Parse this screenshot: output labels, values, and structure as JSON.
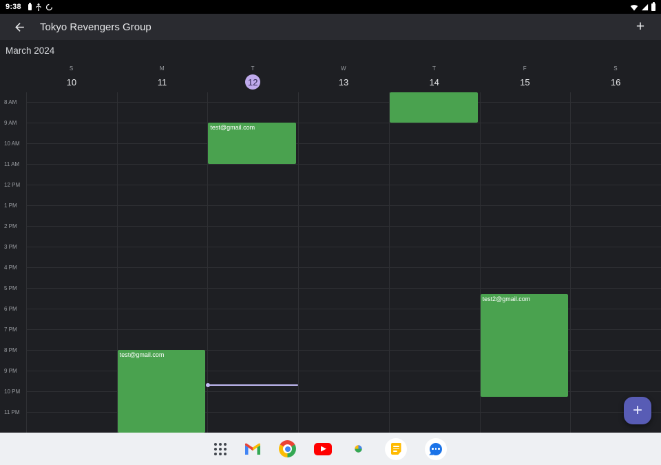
{
  "status_bar": {
    "time": "9:38",
    "left_icons": [
      "battery-notification",
      "usb",
      "data-saver"
    ],
    "right_icons": [
      "wifi",
      "cell-signal",
      "battery"
    ]
  },
  "app_bar": {
    "title": "Tokyo Revengers Group",
    "add_label": "+"
  },
  "calendar": {
    "month_label": "March 2024",
    "day_letters": [
      "S",
      "M",
      "T",
      "W",
      "T",
      "F",
      "S"
    ],
    "day_numbers": [
      "10",
      "11",
      "12",
      "13",
      "14",
      "15",
      "16"
    ],
    "selected_day_index": 2,
    "hour_labels": [
      "8 AM",
      "9 AM",
      "10 AM",
      "11 AM",
      "12 PM",
      "1 PM",
      "2 PM",
      "3 PM",
      "4 PM",
      "5 PM",
      "6 PM",
      "7 PM",
      "8 PM",
      "9 PM",
      "10 PM",
      "11 PM"
    ],
    "events": [
      {
        "title": "test@gmail.com",
        "day_index": 1,
        "start_hour": 20.0,
        "end_hour": 24.0
      },
      {
        "title": "test@gmail.com",
        "day_index": 2,
        "start_hour": 9.0,
        "end_hour": 11.0
      },
      {
        "title": "",
        "day_index": 4,
        "start_hour": 7.55,
        "end_hour": 9.0
      },
      {
        "title": "test2@gmail.com",
        "day_index": 5,
        "start_hour": 17.3,
        "end_hour": 22.25
      }
    ],
    "now_indicator": {
      "day_index": 2,
      "hour": 21.65
    }
  },
  "fab": {
    "label": "+"
  },
  "taskbar": {
    "apps": [
      "app-drawer",
      "gmail",
      "chrome",
      "youtube",
      "photos",
      "keep",
      "messages"
    ]
  },
  "colors": {
    "bg": "#1e1f23",
    "appbar": "#2a2b30",
    "gridline": "#2f3034",
    "event_green": "#4aa24f",
    "selected_day": "#bfaaec",
    "now_line": "#c3bbf5",
    "fab": "#585cb5",
    "taskbar_bg": "#eef0f3"
  }
}
